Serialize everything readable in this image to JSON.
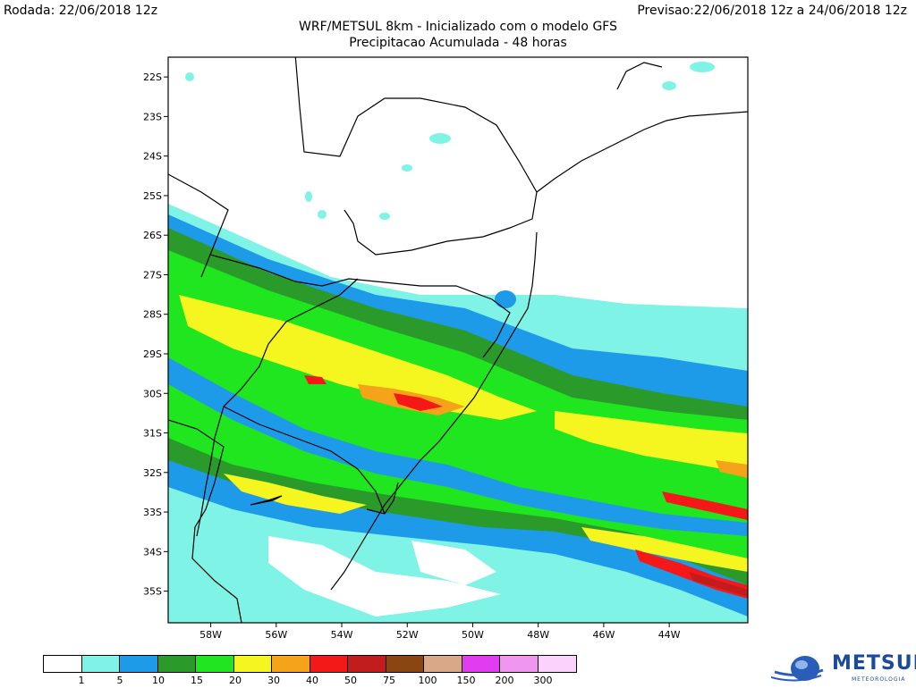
{
  "header": {
    "run_label": "Rodada:",
    "run_value": "22/06/2018 12z",
    "forecast_label": "Previsao:",
    "forecast_value": "22/06/2018 12z a 24/06/2018 12z"
  },
  "title": {
    "line1": "WRF/METSUL 8km - Inicializado com o modelo GFS",
    "line2": "Precipitacao Acumulada - 48 horas"
  },
  "axes": {
    "lat_labels": [
      "22S",
      "23S",
      "24S",
      "25S",
      "26S",
      "27S",
      "28S",
      "29S",
      "30S",
      "31S",
      "32S",
      "33S",
      "34S",
      "35S"
    ],
    "lon_labels": [
      "58W",
      "56W",
      "54W",
      "52W",
      "50W",
      "48W",
      "46W",
      "44W"
    ],
    "lat_range": [
      -35.8,
      -21.5
    ],
    "lon_range": [
      -59.3,
      -41.6
    ]
  },
  "legend": {
    "colors": [
      "#ffffff",
      "#7ff4e6",
      "#1e9be8",
      "#2a9a2a",
      "#1fe61f",
      "#f5f520",
      "#f5a318",
      "#f51818",
      "#c31c1c",
      "#8b4513",
      "#d8a888",
      "#e13cf0",
      "#f096f0",
      "#fbd2fb"
    ],
    "labels": [
      "1",
      "5",
      "10",
      "15",
      "20",
      "30",
      "40",
      "50",
      "75",
      "100",
      "150",
      "200",
      "300"
    ]
  },
  "logo": {
    "name": "METSUL",
    "sub": "METEOROLOGIA"
  }
}
